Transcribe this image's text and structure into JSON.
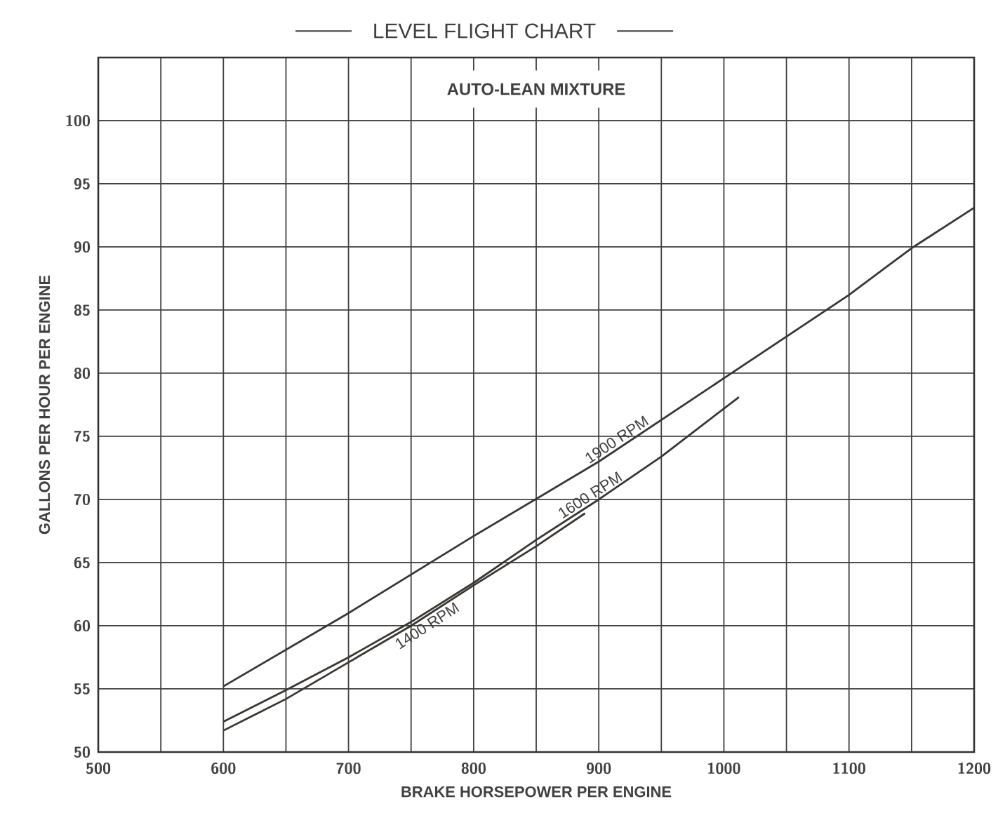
{
  "chart_data": {
    "type": "line",
    "title": "LEVEL FLIGHT CHART",
    "subtitle": "AUTO-LEAN MIXTURE",
    "xlabel": "BRAKE  HORSEPOWER  PER  ENGINE",
    "ylabel": "GALLONS  PER  HOUR  PER  ENGINE",
    "series": [
      {
        "name": "1900 RPM",
        "color": "#3a3632",
        "x": [
          600,
          700,
          800,
          900,
          1000,
          1100,
          1150,
          1200
        ],
        "values": [
          55.2,
          61.0,
          67.1,
          73.0,
          79.6,
          86.2,
          89.9,
          93.1
        ]
      },
      {
        "name": "1600 RPM",
        "color": "#3a3632",
        "x": [
          600,
          650,
          700,
          750,
          800,
          850,
          900,
          950,
          1012
        ],
        "values": [
          52.4,
          54.9,
          57.5,
          60.3,
          63.4,
          66.8,
          70.0,
          73.4,
          78.1
        ]
      },
      {
        "name": "1400 RPM",
        "color": "#3a3632",
        "x": [
          600,
          650,
          700,
          750,
          800,
          850,
          889
        ],
        "values": [
          51.7,
          54.2,
          57.1,
          60.0,
          63.2,
          66.3,
          68.9
        ]
      }
    ],
    "xlim": [
      500,
      1200
    ],
    "xticks": [
      500,
      {
        "value": 550,
        "label": null
      },
      600,
      {
        "value": 650,
        "label": null
      },
      700,
      {
        "value": 750,
        "label": null
      },
      800,
      {
        "value": 850,
        "label": null
      },
      900,
      {
        "value": 950,
        "label": null
      },
      1000,
      {
        "value": 1050,
        "label": null
      },
      1100,
      {
        "value": 1150,
        "label": null
      },
      1200
    ],
    "ylim": [
      50,
      105
    ],
    "yticks": [
      50,
      55,
      60,
      65,
      70,
      75,
      80,
      85,
      90,
      95,
      100,
      {
        "value": 105,
        "label": null
      }
    ],
    "grid": true,
    "marker": "none",
    "line_style": "solid"
  }
}
